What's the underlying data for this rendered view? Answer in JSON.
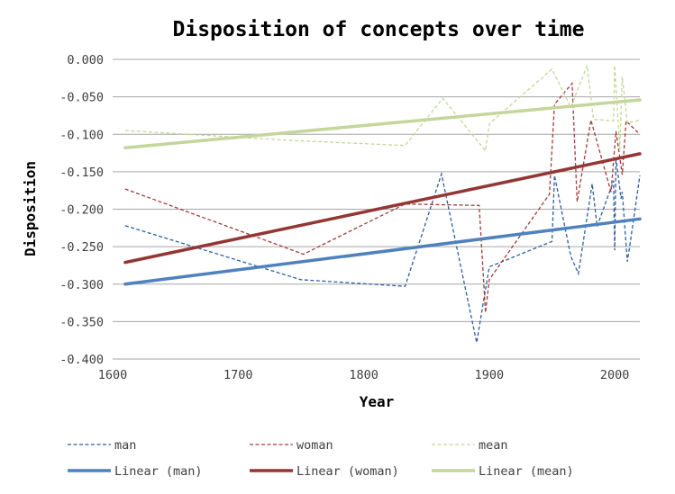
{
  "chart_data": {
    "type": "line",
    "title": "Disposition of concepts over time",
    "xlabel": "Year",
    "ylabel": "Disposition",
    "xlim": [
      1600,
      2020
    ],
    "ylim": [
      -0.4,
      0.0
    ],
    "x_ticks": [
      1600,
      1700,
      1800,
      1900,
      2000
    ],
    "x_tick_labels": [
      "1600",
      "1700",
      "1800",
      "1900",
      "2000"
    ],
    "y_ticks": [
      0.0,
      -0.05,
      -0.1,
      -0.15,
      -0.2,
      -0.25,
      -0.3,
      -0.35,
      -0.4
    ],
    "y_tick_labels": [
      "0.000",
      "-0.050",
      "-0.100",
      "-0.150",
      "-0.200",
      "-0.250",
      "-0.300",
      "-0.350",
      "-0.400"
    ],
    "grid": "horizontal",
    "legend_position": "bottom",
    "series": [
      {
        "name": "man",
        "style": "dashed",
        "color": "#2E5E9E",
        "points": [
          [
            1610,
            -0.222
          ],
          [
            1750,
            -0.294
          ],
          [
            1833,
            -0.303
          ],
          [
            1862,
            -0.153
          ],
          [
            1890,
            -0.378
          ],
          [
            1900,
            -0.277
          ],
          [
            1950,
            -0.243
          ],
          [
            1952,
            -0.155
          ],
          [
            1965,
            -0.263
          ],
          [
            1971,
            -0.286
          ],
          [
            1982,
            -0.166
          ],
          [
            1986,
            -0.223
          ],
          [
            1999,
            -0.162
          ],
          [
            2000,
            -0.255
          ],
          [
            2001,
            -0.131
          ],
          [
            2005,
            -0.186
          ],
          [
            2006,
            -0.177
          ],
          [
            2010,
            -0.27
          ],
          [
            2012,
            -0.248
          ],
          [
            2020,
            -0.155
          ]
        ]
      },
      {
        "name": "woman",
        "style": "dashed",
        "color": "#A33A3A",
        "points": [
          [
            1610,
            -0.173
          ],
          [
            1752,
            -0.26
          ],
          [
            1833,
            -0.193
          ],
          [
            1892,
            -0.195
          ],
          [
            1897,
            -0.338
          ],
          [
            1900,
            -0.294
          ],
          [
            1948,
            -0.18
          ],
          [
            1952,
            -0.06
          ],
          [
            1966,
            -0.032
          ],
          [
            1970,
            -0.19
          ],
          [
            1981,
            -0.081
          ],
          [
            1997,
            -0.177
          ],
          [
            2001,
            -0.096
          ],
          [
            2006,
            -0.154
          ],
          [
            2009,
            -0.082
          ],
          [
            2020,
            -0.1
          ]
        ]
      },
      {
        "name": "mean",
        "style": "dashed",
        "color": "#C4D79B",
        "points": [
          [
            1610,
            -0.095
          ],
          [
            1740,
            -0.108
          ],
          [
            1833,
            -0.115
          ],
          [
            1863,
            -0.052
          ],
          [
            1897,
            -0.122
          ],
          [
            1900,
            -0.086
          ],
          [
            1950,
            -0.013
          ],
          [
            1965,
            -0.064
          ],
          [
            1978,
            -0.008
          ],
          [
            1983,
            -0.08
          ],
          [
            1999,
            -0.082
          ],
          [
            2000,
            -0.008
          ],
          [
            2004,
            -0.12
          ],
          [
            2006,
            -0.023
          ],
          [
            2010,
            -0.085
          ],
          [
            2020,
            -0.081
          ]
        ]
      }
    ],
    "trendlines": [
      {
        "name": "Linear (man)",
        "color": "#4F81BD",
        "points": [
          [
            1610,
            -0.3
          ],
          [
            2020,
            -0.213
          ]
        ]
      },
      {
        "name": "Linear (woman)",
        "color": "#943634",
        "points": [
          [
            1610,
            -0.271
          ],
          [
            2020,
            -0.126
          ]
        ]
      },
      {
        "name": "Linear (mean)",
        "color": "#C3D69B",
        "points": [
          [
            1610,
            -0.118
          ],
          [
            2020,
            -0.054
          ]
        ]
      }
    ]
  }
}
